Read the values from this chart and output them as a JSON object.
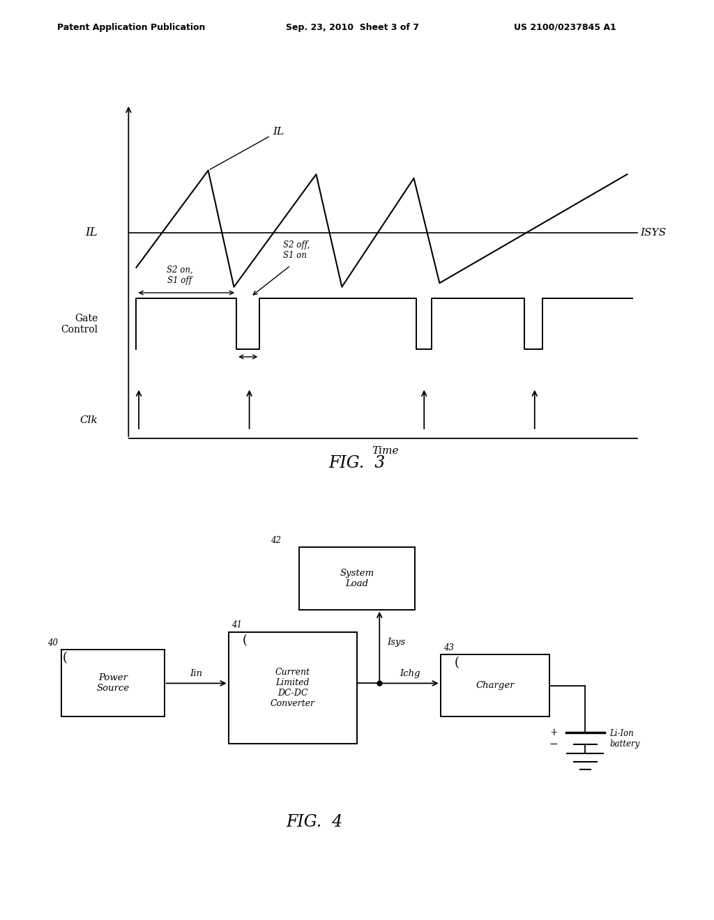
{
  "bg_color": "#ffffff",
  "header_left": "Patent Application Publication",
  "header_center": "Sep. 23, 2010  Sheet 3 of 7",
  "header_right": "US 2100/0237845 A1",
  "fig3_title": "FIG.  3",
  "fig4_title": "FIG.  4",
  "fig3_xlabel": "Time",
  "fig3_ylabel_il": "IL",
  "fig3_ylabel_gate": "Gate\nControl",
  "fig3_ylabel_clk": "Clk",
  "fig3_isys_label": "ISYS",
  "fig3_il_label": "IL",
  "fig3_s2off_label": "S2 off,\nS1 on",
  "fig3_s2on_label": "S2 on,\nS1 off",
  "fig4_40": "40",
  "fig4_41": "41",
  "fig4_42": "42",
  "fig4_43": "43",
  "fig4_ps_label": "Power\nSource",
  "fig4_conv_label": "Current\nLimited\nDC-DC\nConverter",
  "fig4_sys_label": "System\nLoad",
  "fig4_chg_label": "Charger",
  "fig4_iin_label": "Iin",
  "fig4_isys_label": "Isys",
  "fig4_ichg_label": "Ichg",
  "fig4_batt_label": "Li-Ion\nbattery"
}
